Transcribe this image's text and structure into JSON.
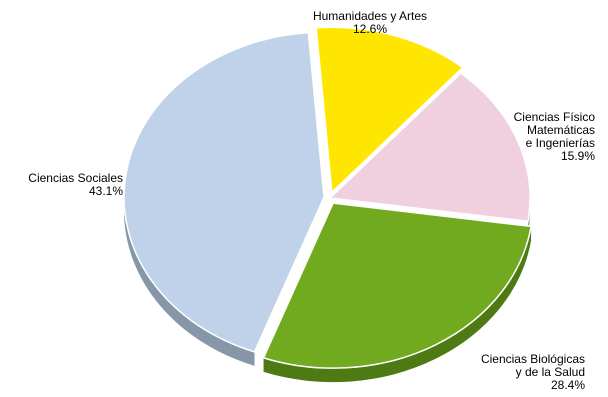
{
  "chart_data": {
    "type": "pie",
    "title": "",
    "slices": [
      {
        "name": "Humanidades y Artes",
        "lines": [
          "Humanidades y Artes"
        ],
        "value": 12.6,
        "value_label": "12.6%",
        "color": "#ffe600",
        "side_color": "#b8a200",
        "exploded": true
      },
      {
        "name": "Ciencias Físico Matemáticas e Ingenierías",
        "lines": [
          "Ciencias Físico",
          "Matemáticas",
          "e Ingenierías"
        ],
        "value": 15.9,
        "value_label": "15.9%",
        "color": "#f0cfdf",
        "side_color": "#b59aa8",
        "exploded": false
      },
      {
        "name": "Ciencias Biológicas y de la Salud",
        "lines": [
          "Ciencias Biológicas",
          "y de la Salud"
        ],
        "value": 28.4,
        "value_label": "28.4%",
        "color": "#72aa1f",
        "side_color": "#4d7a12",
        "exploded": true
      },
      {
        "name": "Ciencias Sociales",
        "lines": [
          "Ciencias Sociales"
        ],
        "value": 43.1,
        "value_label": "43.1%",
        "color": "#c0d2e9",
        "side_color": "#8797a8",
        "exploded": true
      }
    ]
  }
}
